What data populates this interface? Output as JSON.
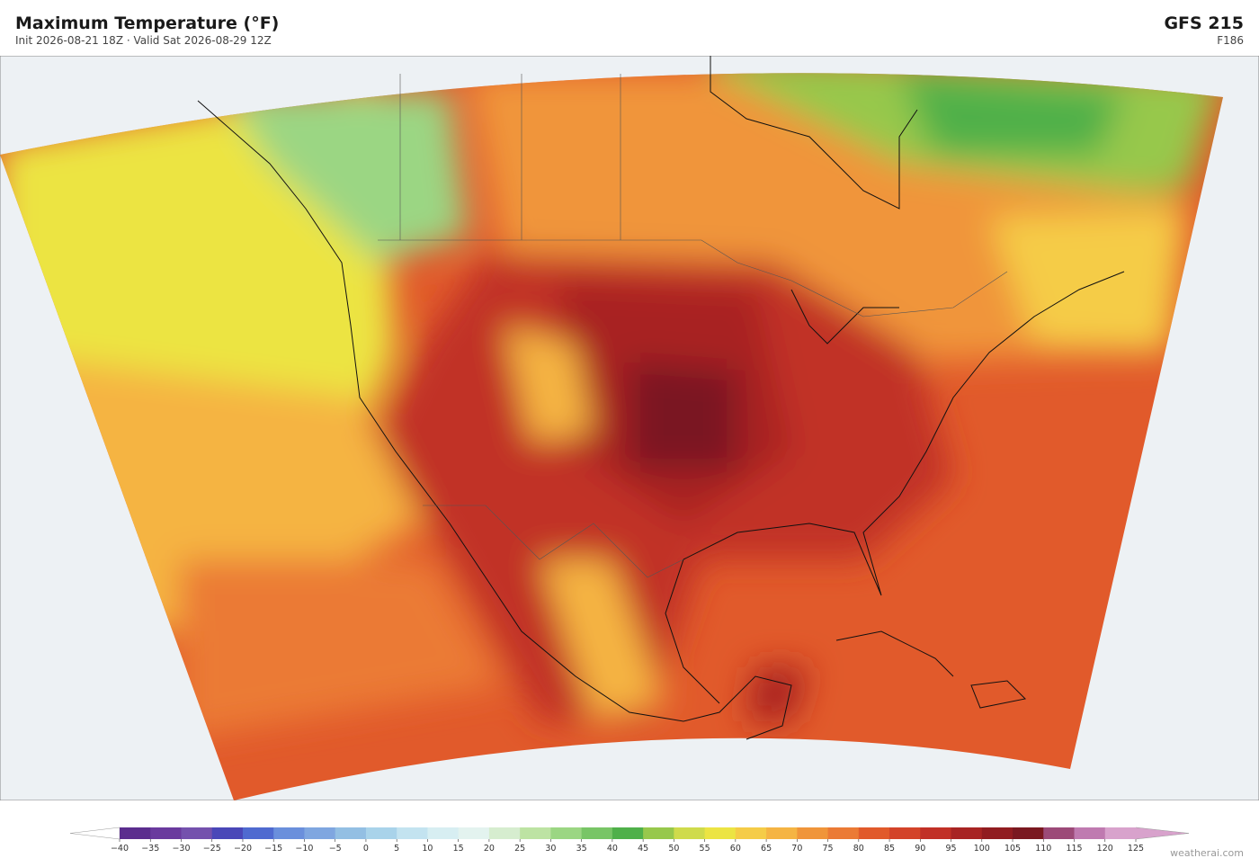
{
  "header": {
    "title": "Maximum Temperature  (°F)",
    "subtitle": "Init 2026-08-21 18Z  ·  Valid Sat 2026-08-29 12Z",
    "model": "GFS  215",
    "forecast_hour": "F186"
  },
  "colorbar": {
    "ticks": [
      {
        "value": -40,
        "label": "−40"
      },
      {
        "value": -35,
        "label": "−35"
      },
      {
        "value": -30,
        "label": "−30"
      },
      {
        "value": -25,
        "label": "−25"
      },
      {
        "value": -20,
        "label": "−20"
      },
      {
        "value": -15,
        "label": "−15"
      },
      {
        "value": -10,
        "label": "−10"
      },
      {
        "value": -5,
        "label": "−5"
      },
      0,
      5,
      10,
      15,
      20,
      25,
      30,
      35,
      40,
      45,
      50,
      55,
      60,
      65,
      70,
      75,
      80,
      85,
      90,
      95,
      100,
      105,
      110,
      115,
      120,
      125
    ],
    "colors": [
      "#5b2d8e",
      "#6a3a9e",
      "#7451ad",
      "#4a47b8",
      "#4f6ad0",
      "#6a8fdc",
      "#7fa6e0",
      "#93bfe3",
      "#a9d3ea",
      "#c3e3f0",
      "#d7eef2",
      "#e3f3ef",
      "#d6edcf",
      "#bde3a3",
      "#9bd683",
      "#78c566",
      "#4fb04a",
      "#97c84c",
      "#cfdb4c",
      "#ece443",
      "#f5cc47",
      "#f5b443",
      "#f0953a",
      "#eb7a35",
      "#e15a2b",
      "#d34329",
      "#c13026",
      "#a82423",
      "#911c20",
      "#7a1820",
      "#9c4a78",
      "#bf7ab0",
      "#d8a2cc"
    ],
    "under_color": "#ffffff",
    "over_color": "#d8a2cc"
  },
  "credit": "weatherai.com"
}
